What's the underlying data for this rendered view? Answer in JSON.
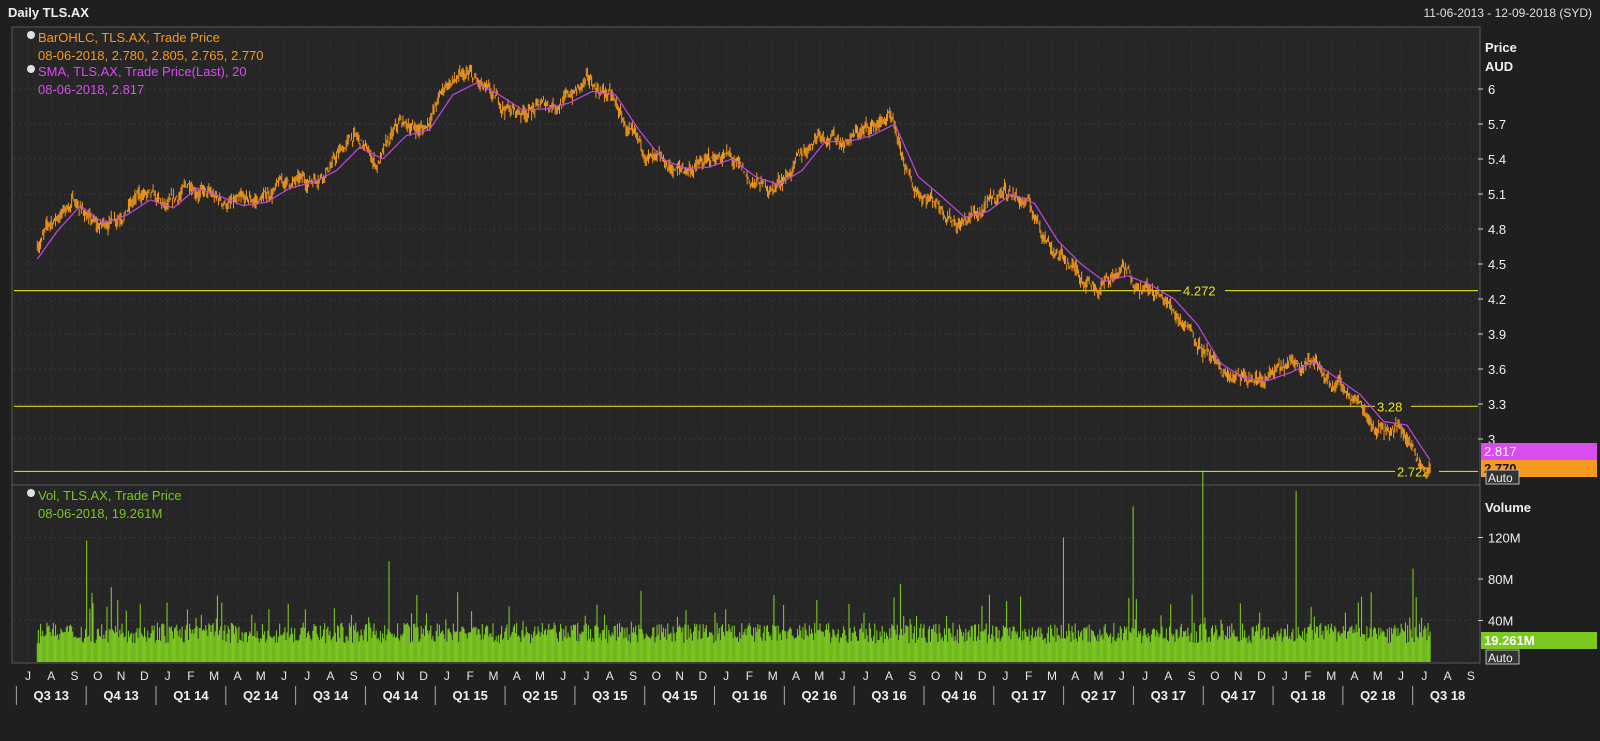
{
  "header": {
    "title": "Daily TLS.AX",
    "date_range": "11-06-2013 - 12-09-2018 (SYD)"
  },
  "price_panel": {
    "axis_title_1": "Price",
    "axis_title_2": "AUD",
    "auto_label": "Auto",
    "legend": [
      {
        "name": "BarOHLC, TLS.AX, Trade Price",
        "value": "08-06-2018, 2.780, 2.805, 2.765, 2.770",
        "color": "#f59a1e"
      },
      {
        "name": "SMA, TLS.AX, Trade Price(Last),  20",
        "value": "08-06-2018, 2.817",
        "color": "#d94cf0"
      }
    ],
    "badges": [
      {
        "text": "2.817",
        "color": "#d94cf0"
      },
      {
        "text": "2.770",
        "color": "#f59a1e"
      }
    ],
    "hlines": [
      {
        "label": "4.272",
        "value": 4.272
      },
      {
        "label": "3.28",
        "value": 3.28
      },
      {
        "label": "2.722",
        "value": 2.722
      }
    ]
  },
  "volume_panel": {
    "axis_title": "Volume",
    "auto_label": "Auto",
    "legend_name": "Vol, TLS.AX, Trade Price",
    "legend_value": "08-06-2018, 19.261M",
    "badge_text": "19.261M",
    "color": "#7bc820"
  },
  "chart_data": {
    "type": "line",
    "title": "Daily TLS.AX",
    "currency": "AUD",
    "price_ylim": [
      2.7,
      6.3
    ],
    "price_ticks": [
      "6",
      "5.7",
      "5.4",
      "5.1",
      "4.8",
      "4.5",
      "4.2",
      "3.9",
      "3.6",
      "3.3",
      "3"
    ],
    "price_tick_values": [
      6.0,
      5.7,
      5.4,
      5.1,
      4.8,
      4.5,
      4.2,
      3.9,
      3.6,
      3.3,
      3.0
    ],
    "x_months": [
      "J",
      "A",
      "S",
      "O",
      "N",
      "D",
      "J",
      "F",
      "M",
      "A",
      "M",
      "J",
      "J",
      "A",
      "S",
      "O",
      "N",
      "D",
      "J",
      "F",
      "M",
      "A",
      "M",
      "J",
      "J",
      "A",
      "S",
      "O",
      "N",
      "D",
      "J",
      "F",
      "M",
      "A",
      "M",
      "J",
      "J",
      "A",
      "S",
      "O",
      "N",
      "D",
      "J",
      "F",
      "M",
      "A",
      "M",
      "J",
      "J",
      "A",
      "S",
      "O",
      "N",
      "D",
      "J",
      "F",
      "M",
      "A",
      "M",
      "J",
      "J",
      "A",
      "S"
    ],
    "x_quarters": [
      "Q3 13",
      "Q4 13",
      "Q1 14",
      "Q2 14",
      "Q3 14",
      "Q4 14",
      "Q1 15",
      "Q2 15",
      "Q3 15",
      "Q4 15",
      "Q1 16",
      "Q2 16",
      "Q3 16",
      "Q4 16",
      "Q1 17",
      "Q2 17",
      "Q3 17",
      "Q4 17",
      "Q1 18",
      "Q2 18",
      "Q3 18"
    ],
    "series": [
      {
        "name": "BarOHLC, TLS.AX, Trade Price",
        "x": [
          "2013-06",
          "2013-07",
          "2013-08",
          "2013-09",
          "2013-10",
          "2013-11",
          "2013-12",
          "2014-01",
          "2014-02",
          "2014-03",
          "2014-04",
          "2014-05",
          "2014-06",
          "2014-07",
          "2014-08",
          "2014-09",
          "2014-10",
          "2014-11",
          "2014-12",
          "2015-01",
          "2015-02",
          "2015-03",
          "2015-04",
          "2015-05",
          "2015-06",
          "2015-07",
          "2015-08",
          "2015-09",
          "2015-10",
          "2015-11",
          "2015-12",
          "2016-01",
          "2016-02",
          "2016-03",
          "2016-04",
          "2016-05",
          "2016-06",
          "2016-07",
          "2016-08",
          "2016-09",
          "2016-10",
          "2016-11",
          "2016-12",
          "2017-01",
          "2017-02",
          "2017-03",
          "2017-04",
          "2017-05",
          "2017-06",
          "2017-07",
          "2017-08",
          "2017-09",
          "2017-10",
          "2017-11",
          "2017-12",
          "2018-01",
          "2018-02",
          "2018-03",
          "2018-04",
          "2018-05",
          "2018-06"
        ],
        "values": [
          4.55,
          4.85,
          5.05,
          4.8,
          4.95,
          5.1,
          4.95,
          5.2,
          5.05,
          5.0,
          5.05,
          5.2,
          5.2,
          5.35,
          5.6,
          5.35,
          5.7,
          5.65,
          6.05,
          6.1,
          5.9,
          5.8,
          5.85,
          5.9,
          6.05,
          5.95,
          5.55,
          5.35,
          5.3,
          5.35,
          5.45,
          5.2,
          5.15,
          5.35,
          5.65,
          5.55,
          5.65,
          5.75,
          5.15,
          5.05,
          4.85,
          4.95,
          5.15,
          5.0,
          4.65,
          4.45,
          4.3,
          4.45,
          4.3,
          4.15,
          3.95,
          3.6,
          3.5,
          3.5,
          3.6,
          3.7,
          3.5,
          3.35,
          3.1,
          3.1,
          2.77
        ]
      },
      {
        "name": "SMA, TLS.AX, Trade Price(Last),  20",
        "x": [
          "2013-06",
          "2013-07",
          "2013-08",
          "2013-09",
          "2013-10",
          "2013-11",
          "2013-12",
          "2014-01",
          "2014-02",
          "2014-03",
          "2014-04",
          "2014-05",
          "2014-06",
          "2014-07",
          "2014-08",
          "2014-09",
          "2014-10",
          "2014-11",
          "2014-12",
          "2015-01",
          "2015-02",
          "2015-03",
          "2015-04",
          "2015-05",
          "2015-06",
          "2015-07",
          "2015-08",
          "2015-09",
          "2015-10",
          "2015-11",
          "2015-12",
          "2016-01",
          "2016-02",
          "2016-03",
          "2016-04",
          "2016-05",
          "2016-06",
          "2016-07",
          "2016-08",
          "2016-09",
          "2016-10",
          "2016-11",
          "2016-12",
          "2017-01",
          "2017-02",
          "2017-03",
          "2017-04",
          "2017-05",
          "2017-06",
          "2017-07",
          "2017-08",
          "2017-09",
          "2017-10",
          "2017-11",
          "2017-12",
          "2018-01",
          "2018-02",
          "2018-03",
          "2018-04",
          "2018-05",
          "2018-06"
        ],
        "values": [
          4.5,
          4.78,
          5.0,
          4.85,
          4.92,
          5.05,
          4.98,
          5.15,
          5.08,
          5.0,
          5.03,
          5.15,
          5.2,
          5.3,
          5.5,
          5.4,
          5.6,
          5.65,
          5.95,
          6.05,
          5.95,
          5.82,
          5.83,
          5.88,
          5.98,
          5.95,
          5.65,
          5.4,
          5.32,
          5.33,
          5.4,
          5.25,
          5.18,
          5.3,
          5.55,
          5.55,
          5.6,
          5.7,
          5.25,
          5.08,
          4.9,
          4.95,
          5.1,
          5.02,
          4.7,
          4.5,
          4.35,
          4.4,
          4.32,
          4.2,
          3.98,
          3.65,
          3.52,
          3.5,
          3.57,
          3.66,
          3.52,
          3.38,
          3.15,
          3.12,
          2.817
        ]
      }
    ],
    "volume": {
      "name": "Vol, TLS.AX, Trade Price",
      "ylim": [
        0,
        160
      ],
      "ticks": [
        "120M",
        "80M",
        "40M"
      ],
      "tick_values": [
        120,
        80,
        40
      ],
      "last": 19.261,
      "unit": "M",
      "spikes": [
        {
          "x": "2013-08",
          "value": 117
        },
        {
          "x": "2014-09",
          "value": 97
        },
        {
          "x": "2016-07",
          "value": 75
        },
        {
          "x": "2017-02",
          "value": 120
        },
        {
          "x": "2017-05",
          "value": 150
        },
        {
          "x": "2017-08",
          "value": 185
        },
        {
          "x": "2017-12",
          "value": 165
        },
        {
          "x": "2018-05",
          "value": 90
        }
      ]
    }
  }
}
